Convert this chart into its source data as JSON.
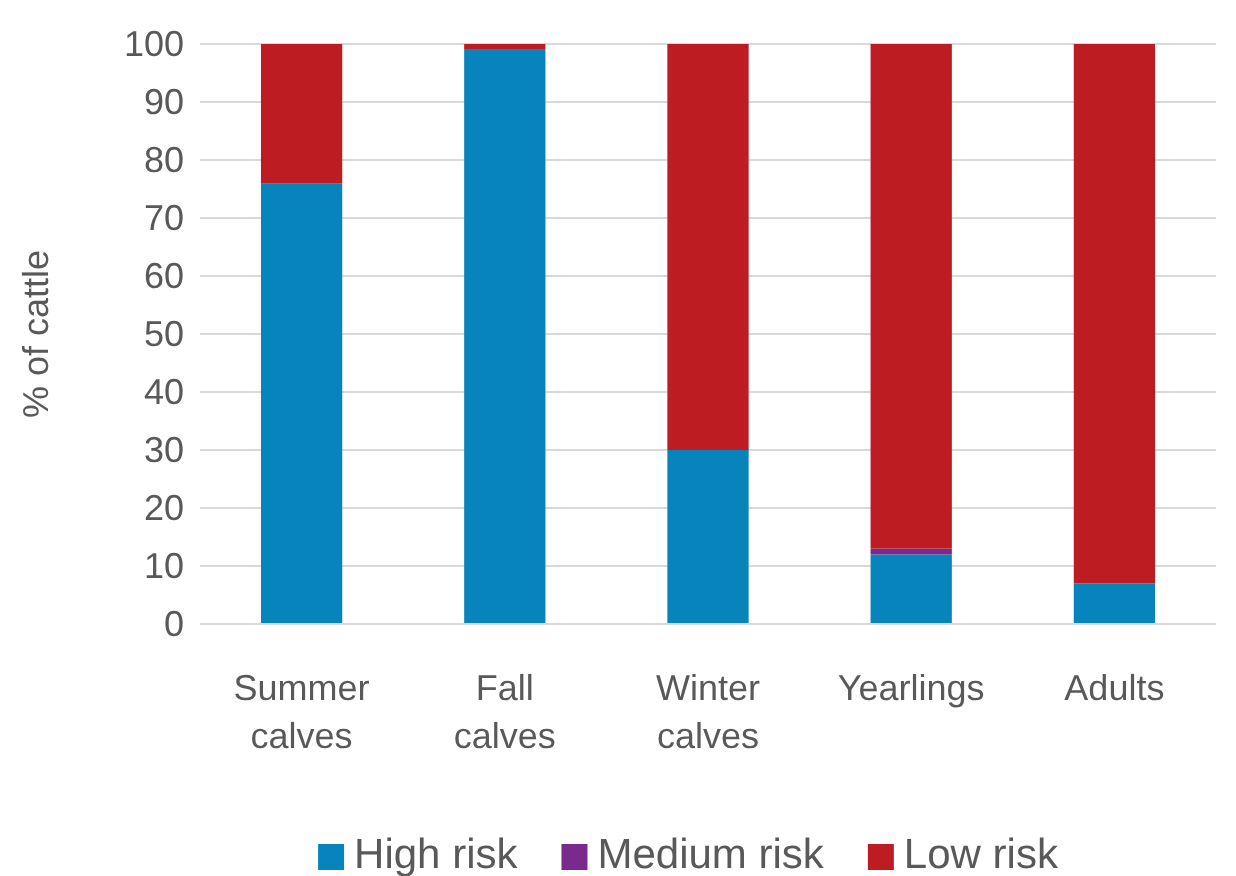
{
  "chart_data": {
    "type": "bar",
    "stacked": true,
    "ylabel": "% of cattle",
    "categories": [
      "Summer calves",
      "Fall calves",
      "Winter calves",
      "Yearlings",
      "Adults"
    ],
    "series": [
      {
        "name": "High risk",
        "color": "#0884bc",
        "values": [
          76,
          99,
          30,
          12,
          7
        ]
      },
      {
        "name": "Medium risk",
        "color": "#7a2a8c",
        "values": [
          0,
          0,
          0,
          1,
          0
        ]
      },
      {
        "name": "Low risk",
        "color": "#bc1c22",
        "values": [
          24,
          1,
          70,
          87,
          93
        ]
      }
    ],
    "ylim": [
      0,
      100
    ],
    "yticks": [
      0,
      10,
      20,
      30,
      40,
      50,
      60,
      70,
      80,
      90,
      100
    ],
    "grid": "y",
    "legend": "bottom"
  }
}
